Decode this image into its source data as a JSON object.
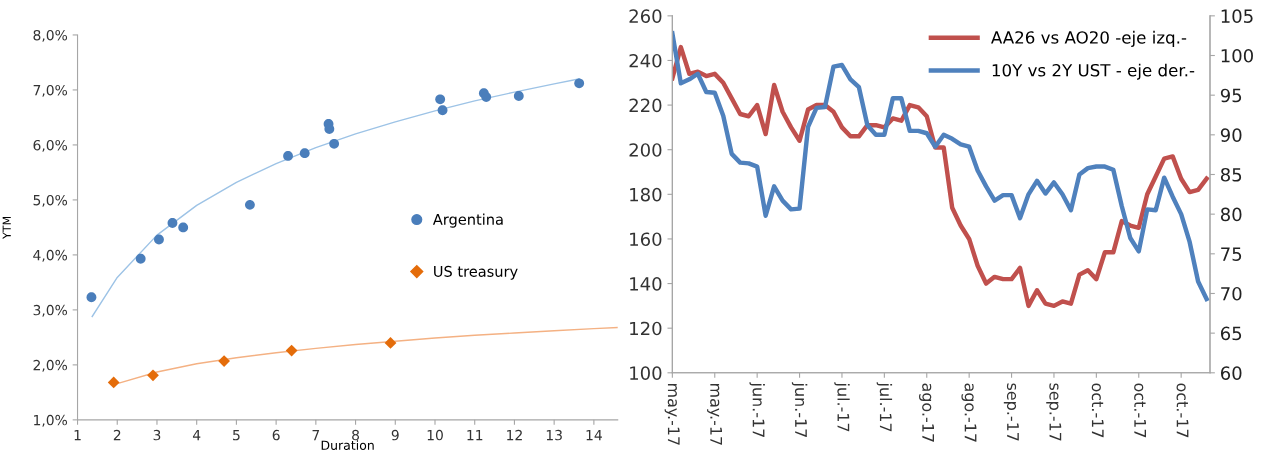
{
  "chart_data": [
    {
      "type": "scatter",
      "xlabel": "Duration",
      "ylabel": "YTM",
      "xlim": [
        1,
        14.6
      ],
      "xticks": [
        1,
        2,
        3,
        4,
        5,
        6,
        7,
        8,
        9,
        10,
        11,
        12,
        13,
        14
      ],
      "ylim": [
        1,
        8
      ],
      "yticks": [
        {
          "value": 1,
          "label": "1,0%"
        },
        {
          "value": 2,
          "label": "2,0%"
        },
        {
          "value": 3,
          "label": "3,0%"
        },
        {
          "value": 4,
          "label": "4,0%"
        },
        {
          "value": 5,
          "label": "5,0%"
        },
        {
          "value": 6,
          "label": "6,0%"
        },
        {
          "value": 7,
          "label": "7,0%"
        },
        {
          "value": 8,
          "label": "8,0%"
        }
      ],
      "grid": false,
      "legend": "center right",
      "series": [
        {
          "name": "Argentina",
          "type": "scatter",
          "marker": "circle",
          "color": "#4a7ebb",
          "x": [
            1.35,
            2.59,
            3.05,
            3.39,
            3.66,
            5.34,
            6.3,
            6.72,
            7.32,
            7.34,
            7.46,
            10.13,
            10.19,
            11.23,
            11.29,
            12.11,
            13.63
          ],
          "values": [
            3.23,
            3.93,
            4.28,
            4.58,
            4.5,
            4.91,
            5.8,
            5.85,
            6.38,
            6.29,
            6.02,
            6.83,
            6.63,
            6.94,
            6.87,
            6.89,
            7.12
          ]
        },
        {
          "name": "US treasury",
          "type": "scatter",
          "marker": "diamond",
          "color": "#e46c0a",
          "x": [
            1.91,
            2.9,
            4.69,
            6.39,
            8.88
          ],
          "values": [
            1.68,
            1.81,
            2.07,
            2.26,
            2.4
          ]
        },
        {
          "type": "line",
          "color": "#9dc3e6",
          "x": [
            1.37,
            2,
            3,
            4,
            5,
            6,
            7,
            8,
            9,
            10,
            11,
            12,
            13,
            13.63
          ],
          "values": [
            2.88,
            3.59,
            4.36,
            4.9,
            5.32,
            5.66,
            5.95,
            6.2,
            6.42,
            6.62,
            6.8,
            6.96,
            7.11,
            7.2
          ]
        },
        {
          "type": "line",
          "color": "#f4b183",
          "x": [
            1.91,
            2,
            3,
            4,
            5,
            6,
            7,
            8,
            9,
            10,
            11,
            12,
            13,
            14,
            14.6
          ],
          "values": [
            1.63,
            1.66,
            1.87,
            2.02,
            2.13,
            2.22,
            2.3,
            2.37,
            2.43,
            2.49,
            2.54,
            2.58,
            2.62,
            2.66,
            2.68
          ]
        }
      ]
    },
    {
      "type": "line",
      "ylim": [
        100,
        260
      ],
      "yticks": [
        100,
        120,
        140,
        160,
        180,
        200,
        220,
        240,
        260
      ],
      "y2lim": [
        60,
        105
      ],
      "y2ticks": [
        60,
        65,
        70,
        75,
        80,
        85,
        90,
        95,
        100,
        105
      ],
      "grid": false,
      "legend": "top right",
      "line_style": "solid",
      "marker": "none",
      "categories": [
        "may.-17",
        null,
        null,
        null,
        null,
        "may.-17",
        null,
        null,
        null,
        null,
        "jun.-17",
        null,
        null,
        null,
        null,
        "jun.-17",
        null,
        null,
        null,
        null,
        "jul.-17",
        null,
        null,
        null,
        null,
        "jul.-17",
        null,
        null,
        null,
        null,
        "ago.-17",
        null,
        null,
        null,
        null,
        "ago.-17",
        null,
        null,
        null,
        null,
        "sep.-17",
        null,
        null,
        null,
        null,
        "sep.-17",
        null,
        null,
        null,
        null,
        "oct.-17",
        null,
        null,
        null,
        null,
        "oct.-17",
        null,
        null,
        null,
        null,
        "oct.-17",
        null,
        null,
        null
      ],
      "series": [
        {
          "name": "AA26 vs AO20 -eje izq.-",
          "color": "#c0504d",
          "values": [
            232,
            246,
            234,
            235,
            233,
            234,
            230,
            223,
            216,
            215,
            220,
            207,
            229,
            217,
            210,
            204,
            218,
            220,
            220,
            217,
            210,
            206,
            206,
            211,
            211,
            210,
            214,
            213,
            220,
            219,
            215,
            201,
            201,
            174,
            166,
            160,
            148,
            140,
            143,
            142,
            142,
            147,
            130,
            137,
            131,
            130,
            132,
            131,
            144,
            146,
            142,
            154,
            154,
            168,
            166,
            165,
            180,
            188,
            196,
            197,
            187,
            181,
            182,
            187
          ]
        },
        {
          "name": "10Y vs 2Y UST - eje der.-",
          "color": "#4f81bd",
          "axis": "y2",
          "values": [
            102.8,
            96.5,
            97,
            97.7,
            95.4,
            95.3,
            92.4,
            87.6,
            86.5,
            86.4,
            86,
            79.8,
            83.5,
            81.7,
            80.6,
            80.7,
            91,
            93.4,
            93.5,
            98.6,
            98.8,
            97,
            96,
            91.2,
            90,
            90,
            94.6,
            94.6,
            90.5,
            90.5,
            90.2,
            88.5,
            90,
            89.5,
            88.8,
            88.5,
            85.5,
            83.5,
            81.7,
            82.4,
            82.4,
            79.5,
            82.5,
            84.2,
            82.6,
            84,
            82.5,
            80.5,
            85,
            85.8,
            86,
            86,
            85.6,
            81,
            77,
            75.3,
            80.6,
            80.5,
            84.6,
            82.2,
            80,
            76.5,
            71.5,
            69.3
          ]
        }
      ]
    }
  ]
}
